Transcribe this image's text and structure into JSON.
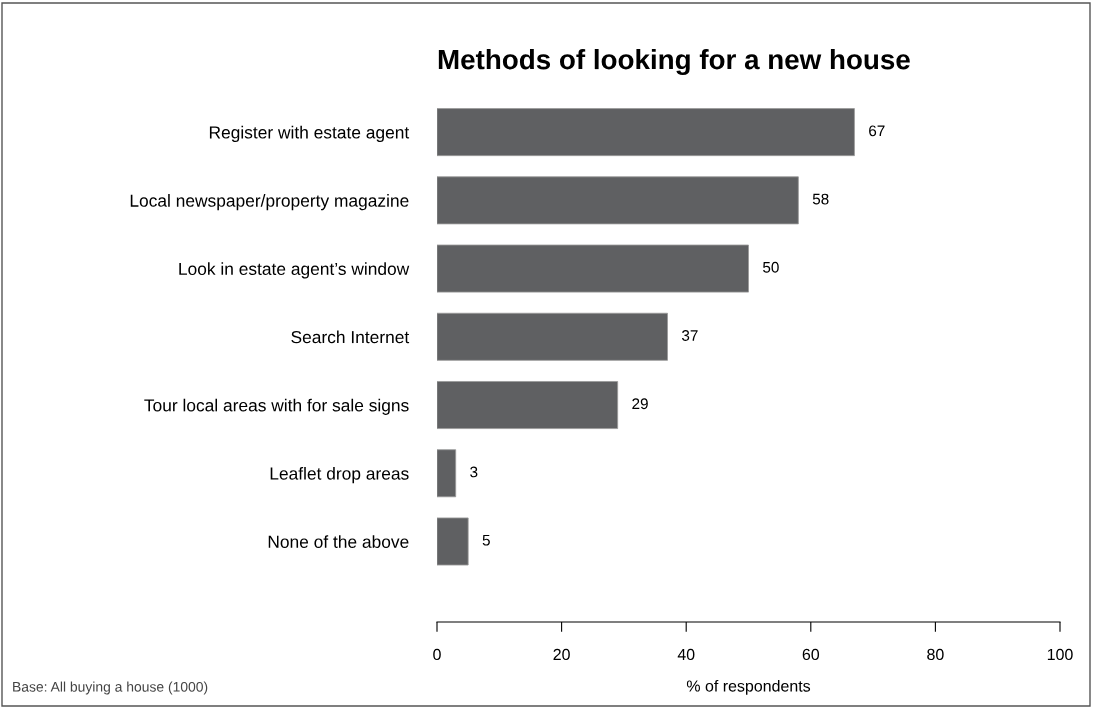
{
  "chart_data": {
    "type": "bar",
    "orientation": "horizontal",
    "title": "Methods of looking for a new house",
    "categories": [
      "Register with estate agent",
      "Local newspaper/property magazine",
      "Look in estate agent’s window",
      "Search Internet",
      "Tour local areas with for sale signs",
      "Leaflet drop areas",
      "None of the above"
    ],
    "values": [
      67,
      58,
      50,
      37,
      29,
      3,
      5
    ],
    "color": "#5f6062",
    "data_labels": true,
    "xlabel": "% of respondents",
    "xlim": [
      0,
      100
    ],
    "xticks": [
      0,
      20,
      40,
      60,
      80,
      100
    ],
    "grid": false,
    "annotations": [
      "Base: All buying a house (1000)"
    ]
  }
}
